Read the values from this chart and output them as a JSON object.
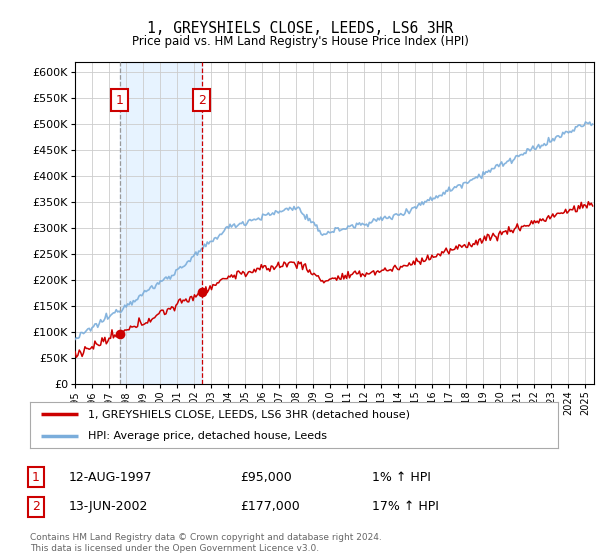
{
  "title": "1, GREYSHIELS CLOSE, LEEDS, LS6 3HR",
  "subtitle": "Price paid vs. HM Land Registry's House Price Index (HPI)",
  "legend_line1": "1, GREYSHIELS CLOSE, LEEDS, LS6 3HR (detached house)",
  "legend_line2": "HPI: Average price, detached house, Leeds",
  "transaction1_label": "1",
  "transaction1_date": "12-AUG-1997",
  "transaction1_price": "£95,000",
  "transaction1_hpi": "1% ↑ HPI",
  "transaction2_label": "2",
  "transaction2_date": "13-JUN-2002",
  "transaction2_price": "£177,000",
  "transaction2_hpi": "17% ↑ HPI",
  "footer": "Contains HM Land Registry data © Crown copyright and database right 2024.\nThis data is licensed under the Open Government Licence v3.0.",
  "background_color": "#ffffff",
  "plot_bg_color": "#ffffff",
  "grid_color": "#cccccc",
  "hpi_line_color": "#7aaddb",
  "price_line_color": "#cc0000",
  "vline1_color": "#999999",
  "vline2_color": "#cc0000",
  "shade_color": "#ddeeff",
  "box_color": "#cc0000",
  "ylim_min": 0,
  "ylim_max": 620000,
  "yticks": [
    0,
    50000,
    100000,
    150000,
    200000,
    250000,
    300000,
    350000,
    400000,
    450000,
    500000,
    550000,
    600000
  ],
  "xlim_min": 1995.0,
  "xlim_max": 2025.5,
  "xticks": [
    1995,
    1996,
    1997,
    1998,
    1999,
    2000,
    2001,
    2002,
    2003,
    2004,
    2005,
    2006,
    2007,
    2008,
    2009,
    2010,
    2011,
    2012,
    2013,
    2014,
    2015,
    2016,
    2017,
    2018,
    2019,
    2020,
    2021,
    2022,
    2023,
    2024,
    2025
  ],
  "transaction1_x": 1997.62,
  "transaction2_x": 2002.45,
  "transaction1_y": 95000,
  "transaction2_y": 177000
}
